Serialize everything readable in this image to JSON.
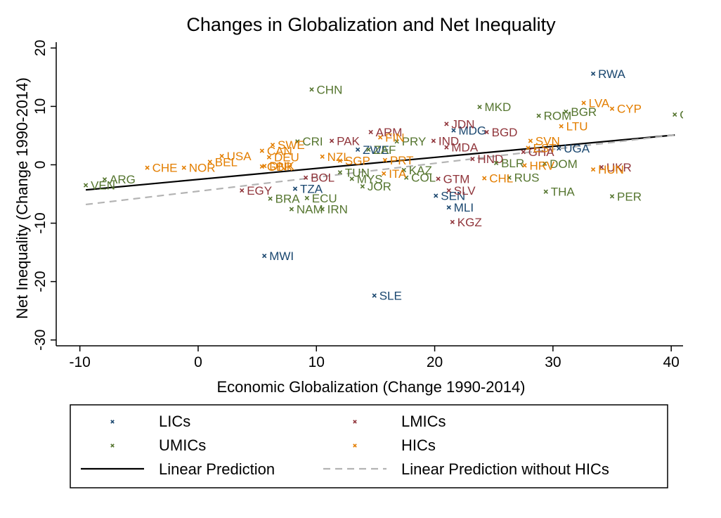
{
  "chart_data": {
    "type": "scatter",
    "title": "Changes in Globalization and Net Inequality",
    "xlabel": "Economic Globalization (Change 1990-2014)",
    "ylabel": "Net Inequality (Change 1990-2014)",
    "xlim": [
      -12,
      41
    ],
    "ylim": [
      -31,
      21
    ],
    "xticks": [
      -10,
      0,
      10,
      20,
      30,
      40
    ],
    "yticks": [
      -30,
      -20,
      -10,
      0,
      10,
      20
    ],
    "grid": false,
    "legend_position": "bottom",
    "colors": {
      "LICs": "#1a476f",
      "LMICs": "#90353b",
      "UMICs": "#55752f",
      "HICs": "#e37e00",
      "fit": "#000000",
      "fit_noHIC": "#b4b4b4"
    },
    "groups": [
      {
        "name": "LICs",
        "points": [
          {
            "label": "RWA",
            "x": 33.4,
            "y": 15.6
          },
          {
            "label": "MDG",
            "x": 21.6,
            "y": 5.9
          },
          {
            "label": "UGA",
            "x": 30.5,
            "y": 2.8
          },
          {
            "label": "ZWE",
            "x": 13.5,
            "y": 2.6
          },
          {
            "label": "TZA",
            "x": 8.2,
            "y": -4.1
          },
          {
            "label": "SEN",
            "x": 20.1,
            "y": -5.3
          },
          {
            "label": "MLI",
            "x": 21.2,
            "y": -7.3
          },
          {
            "label": "MWI",
            "x": 5.6,
            "y": -15.6
          },
          {
            "label": "SLE",
            "x": 14.9,
            "y": -22.4
          }
        ]
      },
      {
        "name": "LMICs",
        "points": [
          {
            "label": "PAK",
            "x": 11.3,
            "y": 4.1
          },
          {
            "label": "ARM",
            "x": 14.6,
            "y": 5.6
          },
          {
            "label": "IND",
            "x": 19.9,
            "y": 4.1
          },
          {
            "label": "JDN",
            "x": 21.0,
            "y": 7.0
          },
          {
            "label": "BGD",
            "x": 24.4,
            "y": 5.6
          },
          {
            "label": "MDA",
            "x": 21.0,
            "y": 3.0
          },
          {
            "label": "HND",
            "x": 23.2,
            "y": 1.0
          },
          {
            "label": "EGY",
            "x": 3.7,
            "y": -4.4
          },
          {
            "label": "BOL",
            "x": 9.1,
            "y": -2.2
          },
          {
            "label": "GTM",
            "x": 20.3,
            "y": -2.4
          },
          {
            "label": "SLV",
            "x": 21.2,
            "y": -4.4
          },
          {
            "label": "KGZ",
            "x": 21.5,
            "y": -9.8
          },
          {
            "label": "UKR",
            "x": 34.1,
            "y": -0.4
          },
          {
            "label": "GHA",
            "x": 27.5,
            "y": 2.2
          }
        ]
      },
      {
        "name": "UMICs",
        "points": [
          {
            "label": "CHN",
            "x": 9.6,
            "y": 12.9
          },
          {
            "label": "MKD",
            "x": 23.8,
            "y": 9.9
          },
          {
            "label": "ROM",
            "x": 28.8,
            "y": 8.4
          },
          {
            "label": "BGR",
            "x": 31.1,
            "y": 9.1
          },
          {
            "label": "GEO",
            "x": 40.3,
            "y": 8.6
          },
          {
            "label": "CRI",
            "x": 8.4,
            "y": 4.0
          },
          {
            "label": "PRY",
            "x": 16.8,
            "y": 4.0
          },
          {
            "label": "ZAF",
            "x": 14.4,
            "y": 2.6
          },
          {
            "label": "ARG",
            "x": -7.9,
            "y": -2.5
          },
          {
            "label": "VEN",
            "x": -9.5,
            "y": -3.5
          },
          {
            "label": "BLR",
            "x": 25.2,
            "y": 0.3
          },
          {
            "label": "DOM",
            "x": 29.3,
            "y": 0.2
          },
          {
            "label": "RUS",
            "x": 26.3,
            "y": -2.2
          },
          {
            "label": "THA",
            "x": 29.4,
            "y": -4.6
          },
          {
            "label": "PER",
            "x": 35.0,
            "y": -5.4
          },
          {
            "label": "KAZ",
            "x": 17.4,
            "y": -0.9
          },
          {
            "label": "COL",
            "x": 17.6,
            "y": -2.2
          },
          {
            "label": "MYS",
            "x": 13.0,
            "y": -2.4
          },
          {
            "label": "IRN",
            "x": 10.5,
            "y": -7.6
          },
          {
            "label": "JOR",
            "x": 13.9,
            "y": -3.7
          },
          {
            "label": "NAM",
            "x": 7.9,
            "y": -7.6
          },
          {
            "label": "BRA",
            "x": 6.1,
            "y": -5.8
          },
          {
            "label": "ECU",
            "x": 9.2,
            "y": -5.7
          },
          {
            "label": "TUN",
            "x": 12.0,
            "y": -1.3
          }
        ]
      },
      {
        "name": "HICs",
        "points": [
          {
            "label": "LVA",
            "x": 32.6,
            "y": 10.6
          },
          {
            "label": "CYP",
            "x": 35.0,
            "y": 9.6
          },
          {
            "label": "LTU",
            "x": 30.7,
            "y": 6.6
          },
          {
            "label": "CHE",
            "x": -4.3,
            "y": -0.5
          },
          {
            "label": "NOR",
            "x": -1.2,
            "y": -0.5
          },
          {
            "label": "BEL",
            "x": 1.0,
            "y": 0.5
          },
          {
            "label": "USA",
            "x": 2.0,
            "y": 1.5
          },
          {
            "label": "SWE",
            "x": 6.3,
            "y": 3.4
          },
          {
            "label": "CAN",
            "x": 5.4,
            "y": 2.4
          },
          {
            "label": "DEU",
            "x": 6.0,
            "y": 1.3
          },
          {
            "label": "DNK",
            "x": 5.6,
            "y": -0.2
          },
          {
            "label": "NZL",
            "x": 10.5,
            "y": 1.4
          },
          {
            "label": "SGP",
            "x": 12.0,
            "y": 0.7
          },
          {
            "label": "FIN",
            "x": 15.4,
            "y": 4.7
          },
          {
            "label": "PRT",
            "x": 15.8,
            "y": 0.8
          },
          {
            "label": "SVN",
            "x": 28.1,
            "y": 4.1
          },
          {
            "label": "CHL",
            "x": 24.2,
            "y": -2.3
          },
          {
            "label": "HRV",
            "x": 27.6,
            "y": -0.1
          },
          {
            "label": "HUN",
            "x": 33.4,
            "y": -0.8
          },
          {
            "label": "EST",
            "x": 27.9,
            "y": 2.9
          },
          {
            "label": "GBR",
            "x": 5.4,
            "y": -0.3
          },
          {
            "label": "ITA",
            "x": 15.7,
            "y": -1.5
          }
        ]
      }
    ],
    "lines": [
      {
        "name": "Linear Prediction",
        "x": [
          -9.5,
          40.3
        ],
        "y": [
          -4.3,
          5.1
        ],
        "style": "solid"
      },
      {
        "name": "Linear Prediction without HICs",
        "x": [
          -9.5,
          40.3
        ],
        "y": [
          -6.8,
          5.1
        ],
        "style": "dashed"
      }
    ],
    "legend": [
      {
        "name": "LICs",
        "kind": "marker",
        "group": "LICs"
      },
      {
        "name": "LMICs",
        "kind": "marker",
        "group": "LMICs"
      },
      {
        "name": "UMICs",
        "kind": "marker",
        "group": "UMICs"
      },
      {
        "name": "HICs",
        "kind": "marker",
        "group": "HICs"
      },
      {
        "name": "Linear Prediction",
        "kind": "line",
        "line": "Linear Prediction"
      },
      {
        "name": "Linear Prediction without HICs",
        "kind": "line",
        "line": "Linear Prediction without HICs"
      }
    ]
  }
}
